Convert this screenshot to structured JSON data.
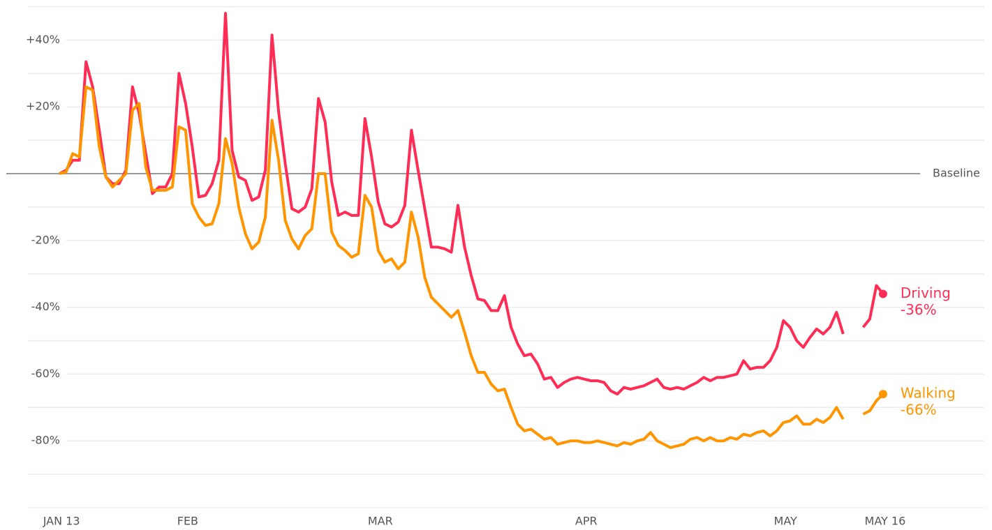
{
  "chart_data": {
    "type": "line",
    "x": [
      0,
      1,
      2,
      3,
      4,
      5,
      6,
      7,
      8,
      9,
      10,
      11,
      12,
      13,
      14,
      15,
      16,
      17,
      18,
      19,
      20,
      21,
      22,
      23,
      24,
      25,
      26,
      27,
      28,
      29,
      30,
      31,
      32,
      33,
      34,
      35,
      36,
      37,
      38,
      39,
      40,
      41,
      42,
      43,
      44,
      45,
      46,
      47,
      48,
      49,
      50,
      51,
      52,
      53,
      54,
      55,
      56,
      57,
      58,
      59,
      60,
      61,
      62,
      63,
      64,
      65,
      66,
      67,
      68,
      69,
      70,
      71,
      72,
      73,
      74,
      75,
      76,
      77,
      78,
      79,
      80,
      81,
      82,
      83,
      84,
      85,
      86,
      87,
      88,
      89,
      90,
      91,
      92,
      93,
      94,
      95,
      96,
      97,
      98,
      99,
      100,
      101,
      102,
      103,
      104,
      105,
      106,
      107,
      108,
      109,
      110,
      111,
      112,
      113,
      114,
      115,
      116,
      117,
      118,
      119,
      120,
      121,
      122,
      123,
      124
    ],
    "series": [
      {
        "name": "Driving",
        "color": "#ff2d55",
        "end_label": "-36%",
        "values": [
          0,
          1,
          4,
          4,
          33.5,
          26,
          13,
          -1,
          -3,
          -3,
          1,
          26,
          18,
          6,
          -6,
          -4,
          -4,
          0,
          30,
          21,
          8,
          -7,
          -6.5,
          -3,
          4,
          48,
          7,
          -1,
          -2,
          -8,
          -7,
          1,
          41.5,
          18.5,
          3,
          -10.5,
          -11.5,
          -10,
          -4.5,
          22.5,
          15.5,
          -2.5,
          -12.5,
          -11.5,
          -12.5,
          -12.5,
          16.5,
          5,
          -8.5,
          -15,
          -16,
          -14.5,
          -9.5,
          13,
          1,
          -10.5,
          -22,
          -22,
          -22.5,
          -23.5,
          -9.5,
          -22,
          -30.5,
          -37.5,
          -38,
          -41,
          -41,
          -36.5,
          -46,
          -51,
          -54.5,
          -54,
          -57,
          -61.5,
          -61,
          -64,
          -62.5,
          -61.5,
          -61,
          -61.5,
          -62,
          -62,
          -62.5,
          -65,
          -66,
          -64,
          -64.5,
          -64,
          -63.5,
          -62.5,
          -61.5,
          -64,
          -64.5,
          -64,
          -64.5,
          -63.5,
          -62.5,
          -61,
          -62,
          -61,
          -61,
          -60.5,
          -60,
          -56,
          -58.5,
          -58,
          -58,
          -56,
          -52,
          -44,
          -46,
          -50,
          -52,
          -49,
          -46.5,
          -48,
          -46,
          -41.5,
          -48,
          null,
          null,
          -46,
          -43.5,
          -33.5,
          -36
        ]
      },
      {
        "name": "Walking",
        "color": "#ff9500",
        "end_label": "-66%",
        "values": [
          0,
          0.5,
          6,
          5,
          26,
          25,
          8,
          -1,
          -4,
          -2,
          0,
          19,
          21,
          2,
          -5,
          -5,
          -5,
          -4,
          14,
          13,
          -9,
          -13,
          -15.5,
          -15,
          -9,
          10.5,
          3,
          -10,
          -18,
          -22.5,
          -20.5,
          -13,
          16,
          4,
          -14,
          -19.5,
          -22.5,
          -18.5,
          -16.5,
          0,
          0,
          -17.5,
          -21.5,
          -23,
          -25,
          -24,
          -6.5,
          -10,
          -23,
          -26.5,
          -25.5,
          -28.5,
          -26.5,
          -11.5,
          -19,
          -31,
          -37,
          -39,
          -41,
          -43,
          -41,
          -47.5,
          -54.5,
          -59.5,
          -59.5,
          -63,
          -65,
          -64.5,
          -70,
          -75,
          -77,
          -76.5,
          -78,
          -79.5,
          -79,
          -81,
          -80.5,
          -80,
          -80,
          -80.5,
          -80.5,
          -80,
          -80.5,
          -81,
          -81.5,
          -80.5,
          -81,
          -80,
          -79.5,
          -77.5,
          -80,
          -81,
          -82,
          -81.5,
          -81,
          -79.5,
          -79,
          -80,
          -79,
          -80,
          -80,
          -79,
          -79.5,
          -78,
          -78.5,
          -77.5,
          -77,
          -78.5,
          -77,
          -74.5,
          -74,
          -72.5,
          -75,
          -75,
          -73.5,
          -74.5,
          -73,
          -70,
          -73.5,
          null,
          null,
          -72,
          -71,
          -68,
          -66
        ]
      }
    ],
    "xlim": [
      -8,
      130
    ],
    "xticks": [
      {
        "value": 0,
        "label": "JAN 13"
      },
      {
        "value": 19,
        "label": "FEB"
      },
      {
        "value": 48,
        "label": "MAR"
      },
      {
        "value": 79,
        "label": "APR"
      },
      {
        "value": 109,
        "label": "MAY"
      },
      {
        "value": 124,
        "label": "MAY 16"
      }
    ],
    "ylim": [
      50,
      -100
    ],
    "yticks": [
      {
        "value": 40,
        "label": "+40%"
      },
      {
        "value": 20,
        "label": "+20%"
      },
      {
        "value": 0,
        "label": "Baseline"
      },
      {
        "value": -20,
        "label": "-20%"
      },
      {
        "value": -40,
        "label": "-40%"
      },
      {
        "value": -60,
        "label": "-60%"
      },
      {
        "value": -80,
        "label": "-80%"
      }
    ],
    "minor_yticks": [
      50,
      30,
      10,
      -10,
      -30,
      -50,
      -70,
      -90,
      -100
    ],
    "grid": true
  }
}
